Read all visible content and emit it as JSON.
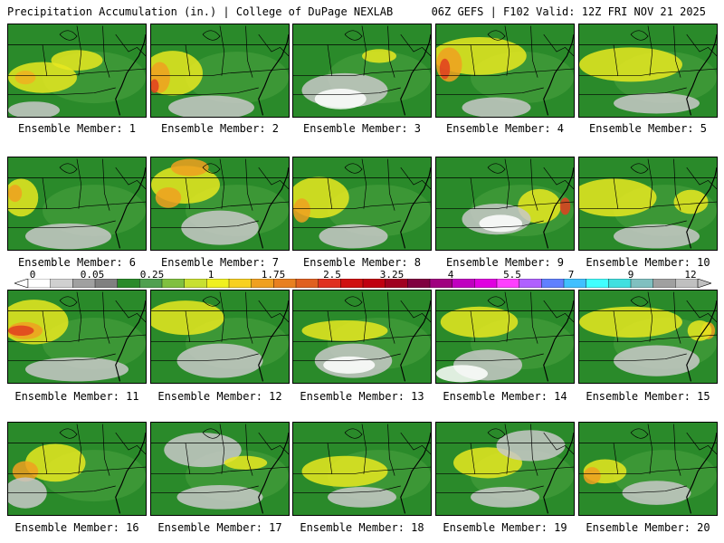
{
  "header": {
    "title": "Precipitation Accumulation (in.) | College of DuPage NEXLAB",
    "run_info": "06Z GEFS | F102 Valid: 12Z FRI NOV 21 2025"
  },
  "panels": [
    {
      "label": "Ensemble Member: 1",
      "blobs": [
        [
          "#e8e820",
          40,
          60,
          40,
          18
        ],
        [
          "#f0b020",
          20,
          60,
          12,
          8
        ],
        [
          "#e8e820",
          80,
          40,
          30,
          12
        ],
        [
          "#c8c8c8",
          30,
          98,
          30,
          10
        ]
      ]
    },
    {
      "label": "Ensemble Member: 2",
      "blobs": [
        [
          "#e8e820",
          25,
          55,
          35,
          26
        ],
        [
          "#f0a020",
          10,
          60,
          12,
          18
        ],
        [
          "#e04020",
          4,
          70,
          5,
          8
        ],
        [
          "#c8c8c8",
          70,
          95,
          50,
          14
        ]
      ]
    },
    {
      "label": "Ensemble Member: 3",
      "blobs": [
        [
          "#c8c8c8",
          60,
          75,
          50,
          20
        ],
        [
          "#ffffff",
          55,
          85,
          30,
          12
        ],
        [
          "#e8e820",
          100,
          35,
          20,
          8
        ]
      ]
    },
    {
      "label": "Ensemble Member: 4",
      "blobs": [
        [
          "#e8e820",
          50,
          35,
          55,
          22
        ],
        [
          "#f0a020",
          15,
          45,
          15,
          20
        ],
        [
          "#e04020",
          10,
          50,
          6,
          12
        ],
        [
          "#c8c8c8",
          70,
          95,
          40,
          12
        ]
      ]
    },
    {
      "label": "Ensemble Member: 5",
      "blobs": [
        [
          "#e8e820",
          60,
          45,
          60,
          20
        ],
        [
          "#c8c8c8",
          90,
          90,
          50,
          12
        ]
      ]
    },
    {
      "label": "Ensemble Member: 6",
      "blobs": [
        [
          "#e8e820",
          15,
          45,
          20,
          22
        ],
        [
          "#f0a020",
          8,
          40,
          8,
          10
        ],
        [
          "#c8c8c8",
          70,
          90,
          50,
          15
        ]
      ]
    },
    {
      "label": "Ensemble Member: 7",
      "blobs": [
        [
          "#e8e820",
          40,
          30,
          40,
          22
        ],
        [
          "#f0a020",
          45,
          10,
          22,
          10
        ],
        [
          "#f0a020",
          20,
          45,
          15,
          12
        ],
        [
          "#c8c8c8",
          80,
          80,
          45,
          20
        ]
      ]
    },
    {
      "label": "Ensemble Member: 8",
      "blobs": [
        [
          "#e8e820",
          30,
          45,
          35,
          24
        ],
        [
          "#f0a020",
          10,
          60,
          10,
          14
        ],
        [
          "#c8c8c8",
          70,
          90,
          40,
          14
        ]
      ]
    },
    {
      "label": "Ensemble Member: 9",
      "blobs": [
        [
          "#e8e820",
          120,
          55,
          25,
          20
        ],
        [
          "#e04020",
          150,
          55,
          6,
          10
        ],
        [
          "#c8c8c8",
          70,
          70,
          40,
          18
        ],
        [
          "#ffffff",
          75,
          75,
          25,
          10
        ]
      ]
    },
    {
      "label": "Ensemble Member: 10",
      "blobs": [
        [
          "#e8e820",
          40,
          45,
          50,
          22
        ],
        [
          "#e8e820",
          130,
          50,
          20,
          14
        ],
        [
          "#c8c8c8",
          90,
          90,
          50,
          14
        ]
      ]
    },
    {
      "label": "Ensemble Member: 11",
      "blobs": [
        [
          "#e8e820",
          30,
          35,
          40,
          26
        ],
        [
          "#f0a020",
          20,
          45,
          20,
          10
        ],
        [
          "#e04020",
          15,
          45,
          15,
          6
        ],
        [
          "#c8c8c8",
          80,
          90,
          60,
          14
        ]
      ]
    },
    {
      "label": "Ensemble Member: 12",
      "blobs": [
        [
          "#e8e820",
          40,
          30,
          45,
          20
        ],
        [
          "#c8c8c8",
          80,
          80,
          50,
          20
        ]
      ]
    },
    {
      "label": "Ensemble Member: 13",
      "blobs": [
        [
          "#e8e820",
          60,
          45,
          50,
          12
        ],
        [
          "#c8c8c8",
          70,
          80,
          45,
          20
        ],
        [
          "#ffffff",
          65,
          85,
          30,
          10
        ]
      ]
    },
    {
      "label": "Ensemble Member: 14",
      "blobs": [
        [
          "#e8e820",
          50,
          35,
          45,
          18
        ],
        [
          "#c8c8c8",
          60,
          85,
          40,
          18
        ],
        [
          "#ffffff",
          30,
          95,
          30,
          10
        ]
      ]
    },
    {
      "label": "Ensemble Member: 15",
      "blobs": [
        [
          "#e8e820",
          60,
          35,
          60,
          18
        ],
        [
          "#f0a020",
          150,
          45,
          8,
          10
        ],
        [
          "#e8e820",
          140,
          45,
          14,
          12
        ],
        [
          "#c8c8c8",
          90,
          80,
          50,
          18
        ]
      ]
    },
    {
      "label": "Ensemble Member: 16",
      "blobs": [
        [
          "#e8e820",
          55,
          45,
          35,
          22
        ],
        [
          "#f0a020",
          20,
          55,
          15,
          12
        ],
        [
          "#c8c8c8",
          20,
          80,
          25,
          18
        ]
      ]
    },
    {
      "label": "Ensemble Member: 17",
      "blobs": [
        [
          "#c8c8c8",
          60,
          30,
          45,
          20
        ],
        [
          "#e8e820",
          110,
          45,
          25,
          8
        ],
        [
          "#c8c8c8",
          80,
          85,
          50,
          14
        ]
      ]
    },
    {
      "label": "Ensemble Member: 18",
      "blobs": [
        [
          "#e8e820",
          60,
          55,
          50,
          18
        ],
        [
          "#c8c8c8",
          80,
          85,
          40,
          12
        ]
      ]
    },
    {
      "label": "Ensemble Member: 19",
      "blobs": [
        [
          "#e8e820",
          60,
          45,
          40,
          18
        ],
        [
          "#c8c8c8",
          110,
          25,
          40,
          18
        ],
        [
          "#c8c8c8",
          80,
          85,
          40,
          12
        ]
      ]
    },
    {
      "label": "Ensemble Member: 20",
      "blobs": [
        [
          "#e8e820",
          30,
          55,
          25,
          14
        ],
        [
          "#f0a020",
          15,
          60,
          10,
          10
        ],
        [
          "#c8c8c8",
          90,
          80,
          40,
          14
        ]
      ]
    }
  ],
  "colorbar": {
    "ticks": [
      "0",
      "0.05",
      "0.25",
      "1",
      "1.75",
      "2.5",
      "3.25",
      "4",
      "5.5",
      "7",
      "9",
      "12"
    ],
    "colors": [
      "#ffffff",
      "#d0d0d0",
      "#a0a0a0",
      "#808080",
      "#2a8a2a",
      "#50a050",
      "#80c040",
      "#c8e030",
      "#f0f020",
      "#f8d020",
      "#f0a020",
      "#e88020",
      "#e06020",
      "#e03020",
      "#d01010",
      "#c00010",
      "#a00020",
      "#800040",
      "#a00080",
      "#c000c0",
      "#e000e0",
      "#ff40ff",
      "#b060ff",
      "#6080ff",
      "#40c0ff",
      "#40ffff",
      "#40e0e0",
      "#80c0c0",
      "#a0a0a0",
      "#c0c0c0"
    ]
  }
}
